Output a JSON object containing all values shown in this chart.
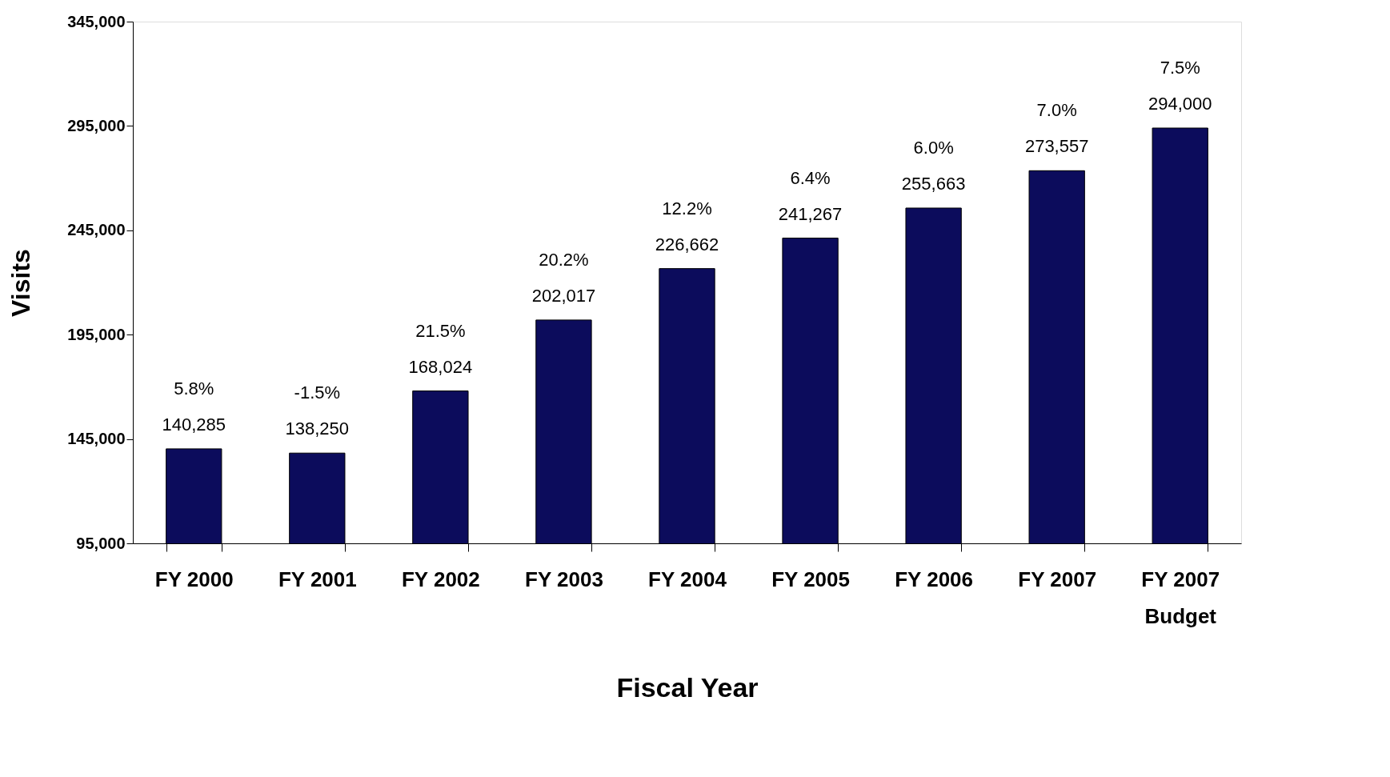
{
  "chart_data": {
    "type": "bar",
    "xlabel": "Fiscal Year",
    "ylabel": "Visits",
    "categories": [
      "FY 2000",
      "FY 2001",
      "FY 2002",
      "FY 2003",
      "FY 2004",
      "FY 2005",
      "FY 2006",
      "FY 2007",
      "FY 2007\nBudget"
    ],
    "values": [
      140285,
      138250,
      168024,
      202017,
      226662,
      241267,
      255663,
      273557,
      294000
    ],
    "value_labels": [
      "140,285",
      "138,250",
      "168,024",
      "202,017",
      "226,662",
      "241,267",
      "255,663",
      "273,557",
      "294,000"
    ],
    "color": "#0c0c5c",
    "ylim": [
      95000,
      345000
    ],
    "yticks": [
      {
        "value": 95000,
        "label": "95,000"
      },
      {
        "value": 145000,
        "label": "145,000"
      },
      {
        "value": 195000,
        "label": "195,000"
      },
      {
        "value": 245000,
        "label": "245,000"
      },
      {
        "value": 295000,
        "label": "295,000"
      },
      {
        "value": 345000,
        "label": "345,000"
      }
    ],
    "grid": false,
    "annotations": [
      "5.8%",
      "-1.5%",
      "21.5%",
      "20.2%",
      "12.2%",
      "6.4%",
      "6.0%",
      "7.0%",
      "7.5%"
    ]
  }
}
